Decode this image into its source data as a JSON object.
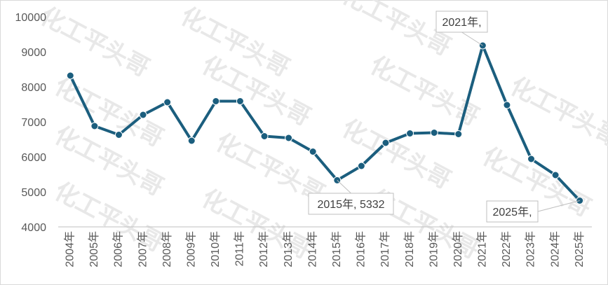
{
  "chart_data": {
    "type": "line",
    "title": "",
    "xlabel": "",
    "ylabel": "",
    "categories": [
      "2004年",
      "2005年",
      "2006年",
      "2007年",
      "2008年",
      "2009年",
      "2010年",
      "2011年",
      "2012年",
      "2013年",
      "2014年",
      "2015年",
      "2016年",
      "2017年",
      "2018年",
      "2019年",
      "2020年",
      "2021年",
      "2022年",
      "2023年",
      "2024年",
      "2025年"
    ],
    "series": [
      {
        "values": [
          8320,
          6880,
          6630,
          7200,
          7560,
          6460,
          7590,
          7590,
          6590,
          6540,
          6150,
          5332,
          5740,
          6400,
          6670,
          6690,
          6650,
          9180,
          7480,
          5940,
          5480,
          4750
        ],
        "color": "#1b5e7e"
      }
    ],
    "ylim": [
      4000,
      10000
    ],
    "yticks": [
      4000,
      5000,
      6000,
      7000,
      8000,
      9000,
      10000
    ],
    "grid": false,
    "legend": "none",
    "annotations": [
      {
        "category": "2015年",
        "text": "2015年, 5332"
      },
      {
        "category": "2021年",
        "text": "2021年,"
      },
      {
        "category": "2025年",
        "text": "2025年,"
      }
    ],
    "watermark": "化工平头哥"
  }
}
